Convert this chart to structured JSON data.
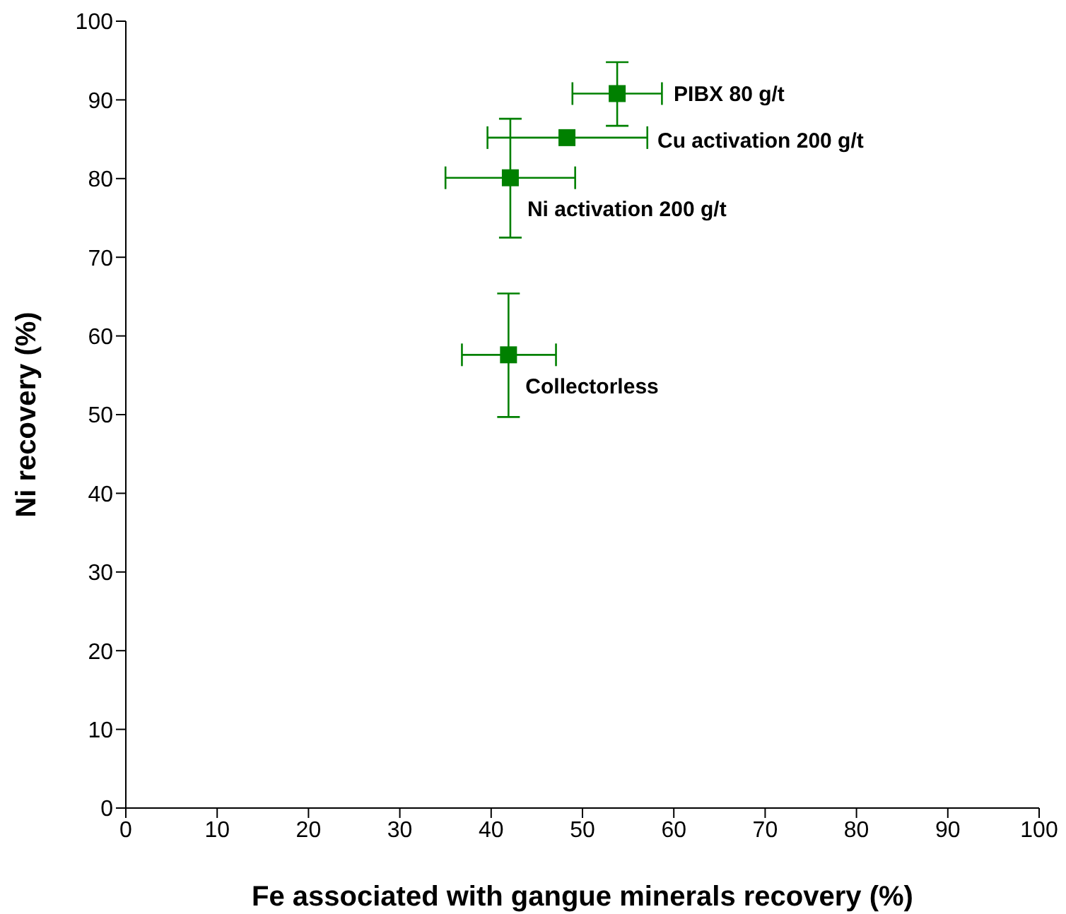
{
  "chart_data": {
    "type": "scatter",
    "xlabel": "Fe associated with gangue minerals recovery (%)",
    "ylabel": "Ni recovery (%)",
    "x": [
      53.8,
      48.3,
      42.1,
      41.9
    ],
    "series": [
      {
        "color": "#008000",
        "values": [
          90.8,
          85.2,
          80.1,
          57.6
        ],
        "errors": [
          [
            86.7,
            94.8
          ],
          null,
          [
            72.5,
            87.6
          ],
          [
            49.7,
            65.4
          ]
        ],
        "xerrors": [
          [
            48.9,
            58.7
          ],
          [
            39.6,
            57.1
          ],
          [
            35.0,
            49.2
          ],
          [
            36.8,
            47.1
          ]
        ]
      }
    ],
    "marker": "square",
    "annotations": [
      "PIBX 80 g/t",
      "Cu activation 200 g/t",
      "Ni activation 200 g/t",
      "Collectorless"
    ],
    "xlim": [
      0,
      100
    ],
    "xticks": [
      0,
      10,
      20,
      30,
      40,
      50,
      60,
      70,
      80,
      90,
      100
    ],
    "ylim": [
      0,
      100
    ],
    "yticks": [
      0,
      10,
      20,
      30,
      40,
      50,
      60,
      70,
      80,
      90,
      100
    ],
    "grid": false,
    "legend": false
  }
}
